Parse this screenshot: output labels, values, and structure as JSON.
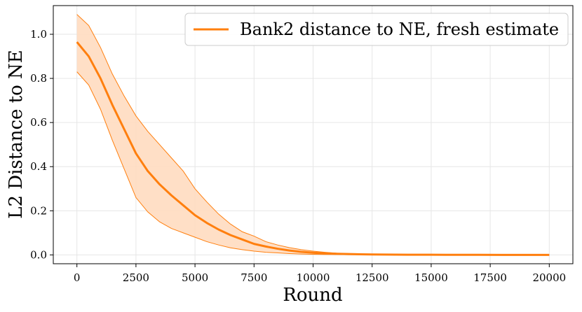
{
  "chart_data": {
    "type": "line",
    "title": "",
    "xlabel": "Round",
    "ylabel": "L2 Distance to NE",
    "xlim": [
      -1000,
      21000
    ],
    "ylim": [
      -0.04,
      1.13
    ],
    "xticks": [
      0,
      2500,
      5000,
      7500,
      10000,
      12500,
      15000,
      17500,
      20000
    ],
    "xtick_labels": [
      "0",
      "2500",
      "5000",
      "7500",
      "10000",
      "12500",
      "15000",
      "17500",
      "20000"
    ],
    "yticks": [
      0.0,
      0.2,
      0.4,
      0.6,
      0.8,
      1.0
    ],
    "ytick_labels": [
      "0.0",
      "0.2",
      "0.4",
      "0.6",
      "0.8",
      "1.0"
    ],
    "grid": true,
    "legend_position": "top-right",
    "series": [
      {
        "name": "Bank2 distance to NE, fresh estimate",
        "color": "#ff7f0e",
        "band_color": "#ffdcc0",
        "x": [
          0,
          500,
          1000,
          1500,
          2000,
          2500,
          3000,
          3500,
          4000,
          4500,
          5000,
          5500,
          6000,
          6500,
          7000,
          7500,
          8000,
          8500,
          9000,
          9500,
          10000,
          10500,
          11000,
          11500,
          12000,
          12500,
          13000,
          14000,
          15000,
          16000,
          17000,
          18000,
          19000,
          20000
        ],
        "mean": [
          0.965,
          0.9,
          0.8,
          0.68,
          0.57,
          0.46,
          0.38,
          0.32,
          0.27,
          0.225,
          0.18,
          0.145,
          0.115,
          0.09,
          0.07,
          0.05,
          0.038,
          0.028,
          0.02,
          0.014,
          0.01,
          0.007,
          0.005,
          0.004,
          0.003,
          0.002,
          0.0015,
          0.001,
          0.0007,
          0.0005,
          0.0003,
          0.0002,
          0.0001,
          0.0001
        ],
        "upper": [
          1.09,
          1.04,
          0.94,
          0.82,
          0.72,
          0.63,
          0.56,
          0.5,
          0.44,
          0.38,
          0.3,
          0.24,
          0.185,
          0.14,
          0.105,
          0.085,
          0.06,
          0.045,
          0.033,
          0.024,
          0.017,
          0.012,
          0.008,
          0.006,
          0.004,
          0.003,
          0.0025,
          0.0018,
          0.0012,
          0.0008,
          0.0005,
          0.0003,
          0.0002,
          0.0001
        ],
        "lower": [
          0.83,
          0.77,
          0.66,
          0.52,
          0.39,
          0.26,
          0.195,
          0.15,
          0.12,
          0.1,
          0.08,
          0.06,
          0.045,
          0.032,
          0.024,
          0.017,
          0.012,
          0.009,
          0.006,
          0.004,
          0.003,
          0.002,
          0.0015,
          0.001,
          0.0008,
          0.0005,
          0.0004,
          0.0003,
          0.0002,
          0.0001,
          0.0001,
          0.0,
          0.0,
          0.0
        ]
      }
    ]
  }
}
